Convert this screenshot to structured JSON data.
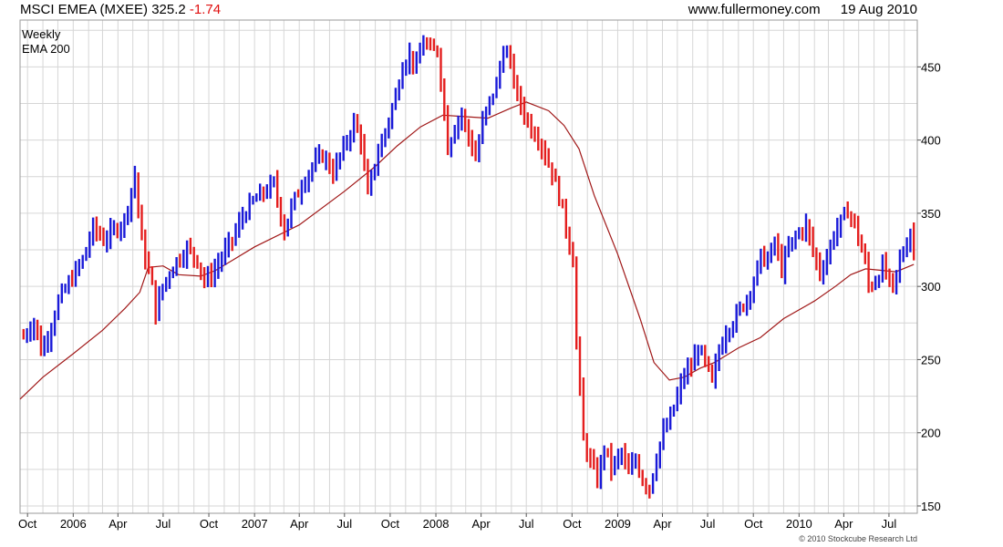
{
  "header": {
    "index_name": "MSCI EMEA (MXEE)",
    "last": "325.2",
    "change": "-1.74",
    "site": "www.fullermoney.com",
    "date": "19 Aug 2010"
  },
  "copyright": "© 2010 Stockcube Research Ltd",
  "colors": {
    "up": "#1a1ad8",
    "down": "#e41e1e",
    "ema": "#a01818",
    "grid": "#d6d6d6"
  },
  "chart_data": {
    "type": "candlestick",
    "frequency": "Weekly",
    "legend": [
      "Weekly",
      "EMA 200"
    ],
    "legend_placement": "top-left",
    "ylim": [
      145,
      482
    ],
    "yticks": [
      150,
      200,
      250,
      300,
      350,
      400,
      450
    ],
    "x_range": [
      "2005-09-16",
      "2010-08-27"
    ],
    "xticks": [
      {
        "date": "2005-10-01",
        "label": "Oct"
      },
      {
        "date": "2006-01-01",
        "label": "2006"
      },
      {
        "date": "2006-04-01",
        "label": "Apr"
      },
      {
        "date": "2006-07-01",
        "label": "Jul"
      },
      {
        "date": "2006-10-01",
        "label": "Oct"
      },
      {
        "date": "2007-01-01",
        "label": "2007"
      },
      {
        "date": "2007-04-01",
        "label": "Apr"
      },
      {
        "date": "2007-07-01",
        "label": "Jul"
      },
      {
        "date": "2007-10-01",
        "label": "Oct"
      },
      {
        "date": "2008-01-01",
        "label": "2008"
      },
      {
        "date": "2008-04-01",
        "label": "Apr"
      },
      {
        "date": "2008-07-01",
        "label": "Jul"
      },
      {
        "date": "2008-10-01",
        "label": "Oct"
      },
      {
        "date": "2009-01-01",
        "label": "2009"
      },
      {
        "date": "2009-04-01",
        "label": "Apr"
      },
      {
        "date": "2009-07-01",
        "label": "Jul"
      },
      {
        "date": "2009-10-01",
        "label": "Oct"
      },
      {
        "date": "2010-01-01",
        "label": "2010"
      },
      {
        "date": "2010-04-01",
        "label": "Apr"
      },
      {
        "date": "2010-07-01",
        "label": "Jul"
      }
    ],
    "grid": true,
    "close_path": [
      [
        "2005-09-23",
        266
      ],
      [
        "2005-10-14",
        276
      ],
      [
        "2005-10-28",
        257
      ],
      [
        "2005-11-11",
        266
      ],
      [
        "2005-12-02",
        290
      ],
      [
        "2005-12-23",
        302
      ],
      [
        "2006-01-20",
        318
      ],
      [
        "2006-02-10",
        340
      ],
      [
        "2006-03-03",
        332
      ],
      [
        "2006-03-24",
        338
      ],
      [
        "2006-04-14",
        345
      ],
      [
        "2006-05-05",
        376
      ],
      [
        "2006-05-19",
        330
      ],
      [
        "2006-06-09",
        300
      ],
      [
        "2006-06-16",
        282
      ],
      [
        "2006-06-30",
        300
      ],
      [
        "2006-07-21",
        314
      ],
      [
        "2006-08-18",
        326
      ],
      [
        "2006-09-08",
        318
      ],
      [
        "2006-09-22",
        304
      ],
      [
        "2006-10-06",
        308
      ],
      [
        "2006-10-27",
        320
      ],
      [
        "2006-11-17",
        332
      ],
      [
        "2006-12-08",
        348
      ],
      [
        "2006-12-29",
        358
      ],
      [
        "2007-01-19",
        364
      ],
      [
        "2007-02-09",
        370
      ],
      [
        "2007-03-02",
        338
      ],
      [
        "2007-03-16",
        354
      ],
      [
        "2007-04-06",
        370
      ],
      [
        "2007-04-27",
        382
      ],
      [
        "2007-05-18",
        390
      ],
      [
        "2007-06-08",
        378
      ],
      [
        "2007-06-29",
        394
      ],
      [
        "2007-07-20",
        412
      ],
      [
        "2007-08-03",
        400
      ],
      [
        "2007-08-17",
        362
      ],
      [
        "2007-08-31",
        384
      ],
      [
        "2007-09-21",
        406
      ],
      [
        "2007-10-12",
        430
      ],
      [
        "2007-10-26",
        452
      ],
      [
        "2007-11-09",
        458
      ],
      [
        "2007-11-23",
        450
      ],
      [
        "2007-12-07",
        468
      ],
      [
        "2007-12-21",
        460
      ],
      [
        "2008-01-04",
        462
      ],
      [
        "2008-01-18",
        420
      ],
      [
        "2008-01-25",
        395
      ],
      [
        "2008-02-08",
        410
      ],
      [
        "2008-02-22",
        418
      ],
      [
        "2008-03-07",
        402
      ],
      [
        "2008-03-21",
        388
      ],
      [
        "2008-04-04",
        412
      ],
      [
        "2008-04-18",
        426
      ],
      [
        "2008-05-02",
        438
      ],
      [
        "2008-05-16",
        462
      ],
      [
        "2008-05-30",
        452
      ],
      [
        "2008-06-13",
        430
      ],
      [
        "2008-06-27",
        418
      ],
      [
        "2008-07-11",
        408
      ],
      [
        "2008-07-25",
        402
      ],
      [
        "2008-08-08",
        390
      ],
      [
        "2008-08-22",
        378
      ],
      [
        "2008-09-05",
        362
      ],
      [
        "2008-09-19",
        340
      ],
      [
        "2008-10-03",
        318
      ],
      [
        "2008-10-10",
        262
      ],
      [
        "2008-10-24",
        195
      ],
      [
        "2008-11-07",
        180
      ],
      [
        "2008-11-21",
        168
      ],
      [
        "2008-12-05",
        190
      ],
      [
        "2008-12-19",
        176
      ],
      [
        "2009-01-09",
        186
      ],
      [
        "2009-01-23",
        172
      ],
      [
        "2009-02-06",
        182
      ],
      [
        "2009-02-20",
        168
      ],
      [
        "2009-03-06",
        162
      ],
      [
        "2009-03-20",
        184
      ],
      [
        "2009-04-03",
        200
      ],
      [
        "2009-04-17",
        210
      ],
      [
        "2009-05-01",
        225
      ],
      [
        "2009-05-15",
        240
      ],
      [
        "2009-05-29",
        245
      ],
      [
        "2009-06-12",
        258
      ],
      [
        "2009-06-26",
        248
      ],
      [
        "2009-07-10",
        234
      ],
      [
        "2009-07-24",
        256
      ],
      [
        "2009-08-07",
        270
      ],
      [
        "2009-08-21",
        276
      ],
      [
        "2009-09-04",
        284
      ],
      [
        "2009-09-18",
        292
      ],
      [
        "2009-10-02",
        304
      ],
      [
        "2009-10-16",
        320
      ],
      [
        "2009-10-30",
        318
      ],
      [
        "2009-11-13",
        330
      ],
      [
        "2009-11-27",
        312
      ],
      [
        "2009-12-11",
        326
      ],
      [
        "2009-12-25",
        334
      ],
      [
        "2010-01-15",
        342
      ],
      [
        "2010-01-29",
        324
      ],
      [
        "2010-02-12",
        310
      ],
      [
        "2010-02-26",
        320
      ],
      [
        "2010-03-12",
        336
      ],
      [
        "2010-03-26",
        344
      ],
      [
        "2010-04-09",
        352
      ],
      [
        "2010-04-16",
        348
      ],
      [
        "2010-04-30",
        334
      ],
      [
        "2010-05-14",
        316
      ],
      [
        "2010-05-21",
        300
      ],
      [
        "2010-06-04",
        304
      ],
      [
        "2010-06-18",
        314
      ],
      [
        "2010-06-25",
        308
      ],
      [
        "2010-07-09",
        298
      ],
      [
        "2010-07-23",
        318
      ],
      [
        "2010-08-06",
        330
      ],
      [
        "2010-08-13",
        338
      ],
      [
        "2010-08-20",
        325
      ]
    ],
    "ema_200": [
      [
        "2005-09-16",
        223
      ],
      [
        "2005-11-01",
        238
      ],
      [
        "2006-01-01",
        254
      ],
      [
        "2006-03-01",
        270
      ],
      [
        "2006-04-15",
        285
      ],
      [
        "2006-05-15",
        296
      ],
      [
        "2006-06-01",
        313
      ],
      [
        "2006-07-01",
        314
      ],
      [
        "2006-08-01",
        308
      ],
      [
        "2006-09-15",
        307
      ],
      [
        "2006-10-15",
        311
      ],
      [
        "2007-01-01",
        327
      ],
      [
        "2007-04-01",
        342
      ],
      [
        "2007-07-01",
        365
      ],
      [
        "2007-09-01",
        382
      ],
      [
        "2007-10-15",
        396
      ],
      [
        "2007-12-01",
        409
      ],
      [
        "2008-01-15",
        417
      ],
      [
        "2008-03-01",
        416
      ],
      [
        "2008-04-15",
        415
      ],
      [
        "2008-06-01",
        422
      ],
      [
        "2008-07-01",
        426
      ],
      [
        "2008-08-15",
        420
      ],
      [
        "2008-09-15",
        410
      ],
      [
        "2008-10-15",
        394
      ],
      [
        "2008-11-15",
        362
      ],
      [
        "2009-01-01",
        322
      ],
      [
        "2009-02-15",
        278
      ],
      [
        "2009-03-15",
        248
      ],
      [
        "2009-04-15",
        236
      ],
      [
        "2009-05-15",
        238
      ],
      [
        "2009-06-15",
        244
      ],
      [
        "2009-07-15",
        248
      ],
      [
        "2009-09-01",
        258
      ],
      [
        "2009-10-15",
        265
      ],
      [
        "2009-12-01",
        278
      ],
      [
        "2010-02-01",
        290
      ],
      [
        "2010-03-15",
        300
      ],
      [
        "2010-04-15",
        308
      ],
      [
        "2010-05-15",
        312
      ],
      [
        "2010-06-15",
        311
      ],
      [
        "2010-07-15",
        310
      ],
      [
        "2010-08-20",
        315
      ]
    ]
  }
}
